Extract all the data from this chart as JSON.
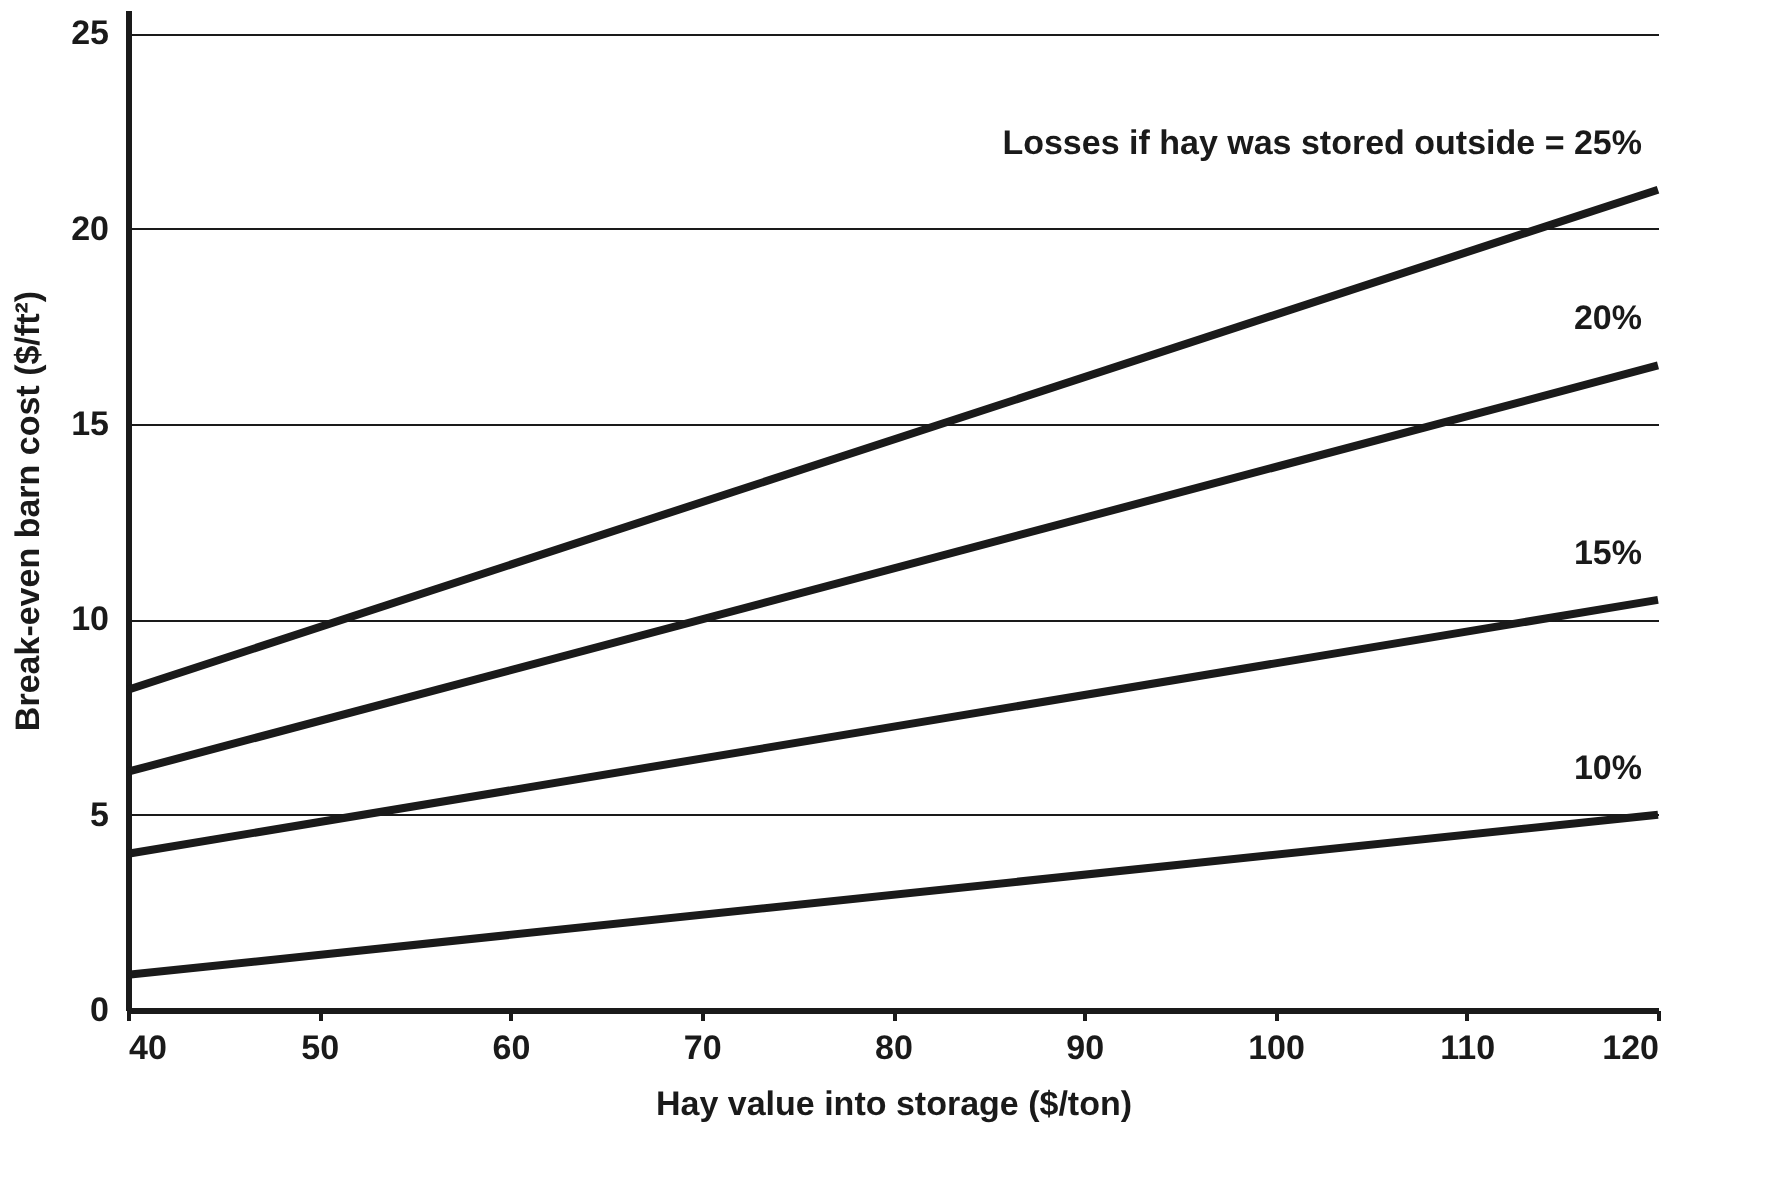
{
  "chart_data": {
    "type": "line",
    "xlabel": "Hay value into storage ($/ton)",
    "ylabel": "Break-even barn cost ($/ft²)",
    "x": [
      40,
      120
    ],
    "series": [
      {
        "name": "Losses if hay was stored outside = 25%",
        "color": "#1a1a1a",
        "values": [
          8.2,
          21.0
        ]
      },
      {
        "name": "20%",
        "color": "#1a1a1a",
        "values": [
          6.1,
          16.5
        ]
      },
      {
        "name": "15%",
        "color": "#1a1a1a",
        "values": [
          4.0,
          10.5
        ]
      },
      {
        "name": "10%",
        "color": "#1a1a1a",
        "values": [
          0.9,
          5.0
        ]
      }
    ],
    "xlim": [
      40,
      120
    ],
    "ylim": [
      0,
      25.6
    ],
    "xticks": [
      40,
      50,
      60,
      70,
      80,
      90,
      100,
      110,
      120
    ],
    "yticks": [
      0,
      5,
      10,
      15,
      20,
      25
    ],
    "grid": "y",
    "marker": "none",
    "line_style": "solid"
  }
}
